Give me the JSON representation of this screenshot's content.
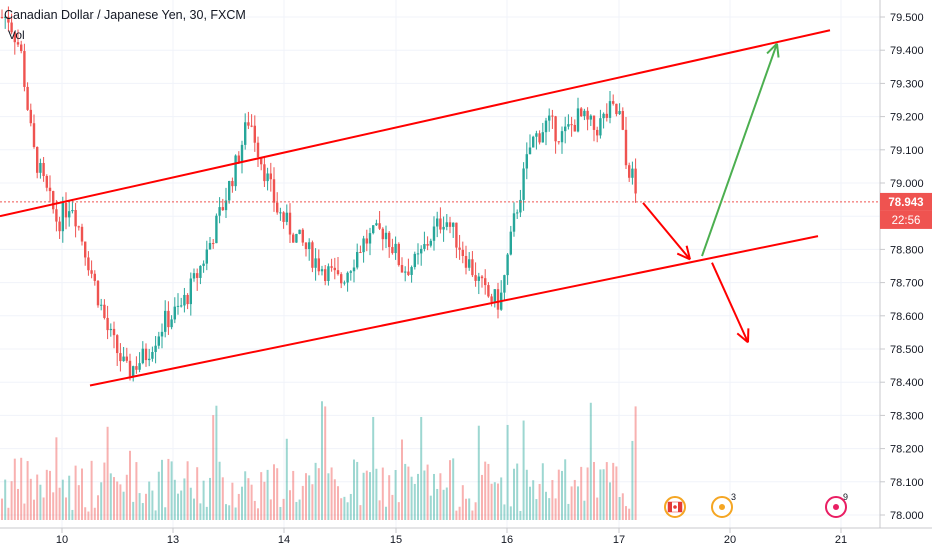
{
  "header": {
    "title": "Canadian Dollar / Japanese Yen, 30, FXCM",
    "volume_label": "Vol"
  },
  "price_axis": {
    "ticks": [
      "79.500",
      "79.400",
      "79.300",
      "79.200",
      "79.100",
      "79.000",
      "78.900",
      "78.800",
      "78.700",
      "78.600",
      "78.500",
      "78.400",
      "78.300",
      "78.200",
      "78.100",
      "78.000"
    ],
    "current_price": "78.943",
    "countdown": "22:56"
  },
  "time_axis": {
    "ticks": [
      "10",
      "13",
      "14",
      "15",
      "16",
      "17",
      "20",
      "21"
    ]
  },
  "events": {
    "flag_icon": "canada-flag-icon",
    "event_badge_1": "3",
    "event_badge_2": "9"
  },
  "chart_data": {
    "type": "candlestick",
    "symbol": "Canadian Dollar / Japanese Yen",
    "interval": "30",
    "source": "FXCM",
    "last_price": 78.943,
    "ylim": [
      77.97,
      79.55
    ],
    "xcategories": [
      "10",
      "13",
      "14",
      "15",
      "16",
      "17",
      "20",
      "21"
    ],
    "price_path": [
      [
        "9",
        79.5
      ],
      [
        "9",
        79.4
      ],
      [
        "9",
        79.1
      ],
      [
        "9",
        78.98
      ],
      [
        "9",
        78.88
      ],
      [
        "10",
        78.95
      ],
      [
        "10",
        78.75
      ],
      [
        "10",
        78.55
      ],
      [
        "10",
        78.43
      ],
      [
        "10",
        78.48
      ],
      [
        "10",
        78.58
      ],
      [
        "13",
        78.62
      ],
      [
        "13",
        78.7
      ],
      [
        "13",
        78.8
      ],
      [
        "13",
        78.92
      ],
      [
        "13",
        79.05
      ],
      [
        "13",
        79.2
      ],
      [
        "13",
        79.05
      ],
      [
        "13",
        78.92
      ],
      [
        "14",
        78.84
      ],
      [
        "14",
        78.76
      ],
      [
        "14",
        78.7
      ],
      [
        "14",
        78.82
      ],
      [
        "14",
        78.86
      ],
      [
        "15",
        78.74
      ],
      [
        "15",
        78.76
      ],
      [
        "15",
        78.84
      ],
      [
        "15",
        78.9
      ],
      [
        "15",
        78.82
      ],
      [
        "15",
        78.74
      ],
      [
        "15",
        78.66
      ],
      [
        "15",
        78.64
      ],
      [
        "16",
        78.9
      ],
      [
        "16",
        79.12
      ],
      [
        "16",
        79.18
      ],
      [
        "16",
        79.14
      ],
      [
        "16",
        79.2
      ],
      [
        "16",
        79.16
      ],
      [
        "16",
        79.22
      ],
      [
        "17",
        79.2
      ],
      [
        "17",
        79.1
      ],
      [
        "17",
        79.02
      ],
      [
        "17",
        79.06
      ],
      [
        "17",
        78.98
      ],
      [
        "17",
        78.943
      ]
    ],
    "channel_upper": [
      [
        "9",
        78.9
      ],
      [
        "21",
        79.46
      ]
    ],
    "channel_lower": [
      [
        "10",
        78.39
      ],
      [
        "21",
        78.84
      ]
    ],
    "projection_down": [
      [
        "17",
        78.94
      ],
      [
        "20",
        78.77
      ]
    ],
    "projection_up": [
      [
        "20",
        78.78
      ],
      [
        "20",
        79.42
      ]
    ],
    "projection_down_2": [
      [
        "20",
        78.76
      ],
      [
        "20",
        78.52
      ]
    ],
    "colors": {
      "up": "#26a69a",
      "down": "#ef5350",
      "channel": "#ff0000",
      "projection_up": "#4caf50",
      "price_line": "#ef5350"
    }
  }
}
